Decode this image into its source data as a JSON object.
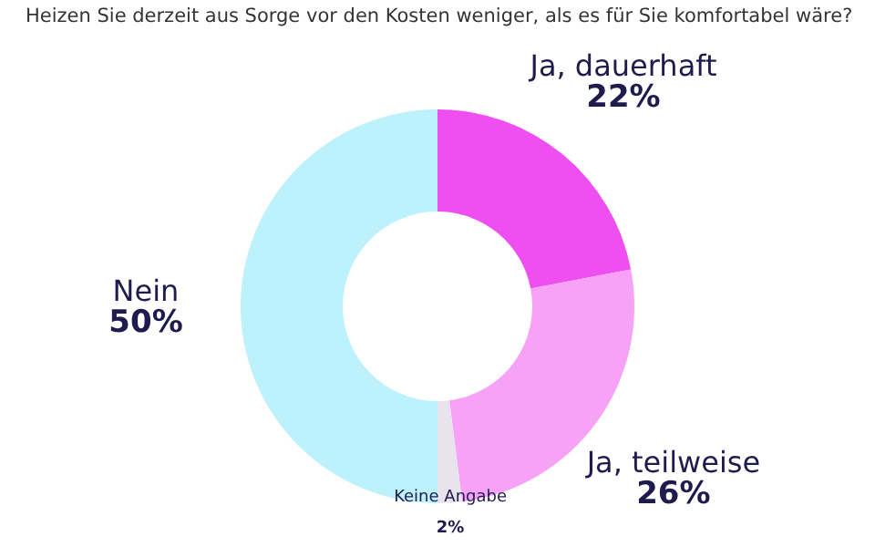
{
  "chart_data": {
    "type": "donut",
    "title": "Heizen Sie derzeit aus Sorge vor den Kosten weniger, als es für Sie komfortabel wäre?",
    "categories": [
      "Ja, dauerhaft",
      "Ja, teilweise",
      "Keine Angabe",
      "Nein"
    ],
    "values": [
      22,
      26,
      2,
      50
    ],
    "colors": [
      "#ef4ff0",
      "#f7a1f7",
      "#e8e4ee",
      "#bdf1fb"
    ],
    "value_labels": [
      "22%",
      "26%",
      "2%",
      "50%"
    ]
  }
}
